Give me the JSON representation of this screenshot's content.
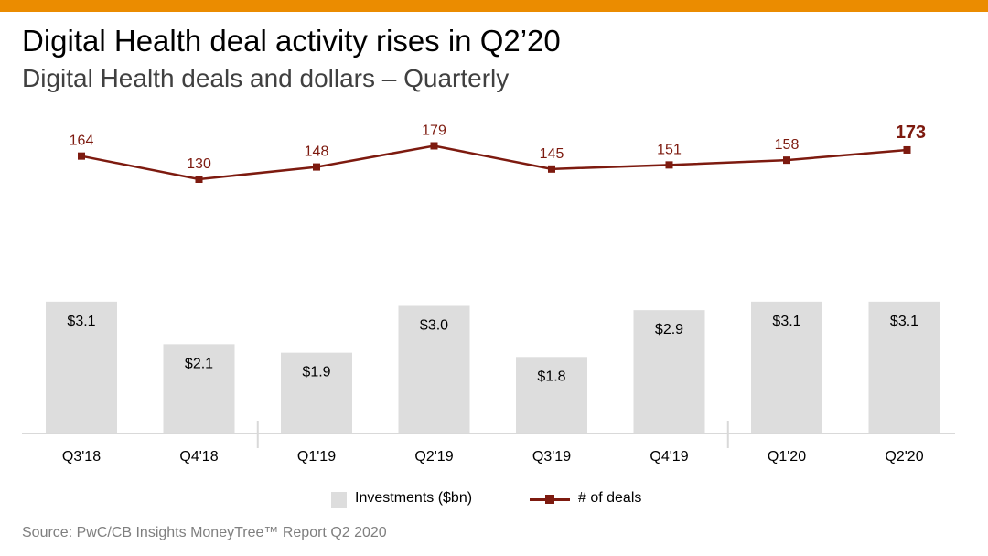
{
  "header": {
    "title": "Digital Health deal activity rises in Q2’20",
    "subtitle": "Digital Health deals and dollars – Quarterly"
  },
  "colors": {
    "accent_bar": "#EB8C00",
    "bar": "#DDDDDD",
    "line": "#7D1A0F",
    "axis": "#D9D9D9"
  },
  "chart_data": {
    "type": "bar",
    "categories": [
      "Q3'18",
      "Q4'18",
      "Q1'19",
      "Q2'19",
      "Q3'19",
      "Q4'19",
      "Q1'20",
      "Q2'20"
    ],
    "series": [
      {
        "name": "Investments ($bn)",
        "type": "bar",
        "values": [
          3.1,
          2.1,
          1.9,
          3.0,
          1.8,
          2.9,
          3.1,
          3.1
        ],
        "labels": [
          "$3.1",
          "$2.1",
          "$1.9",
          "$3.0",
          "$1.8",
          "$2.9",
          "$3.1",
          "$3.1"
        ]
      },
      {
        "name": "# of deals",
        "type": "line",
        "values": [
          164,
          130,
          148,
          179,
          145,
          151,
          158,
          173
        ],
        "labels": [
          "164",
          "130",
          "148",
          "179",
          "145",
          "151",
          "158",
          "173"
        ],
        "emphasized_index": 7
      }
    ],
    "year_separators_after": [
      1,
      5
    ],
    "grid": false,
    "legend": "bottom-center"
  },
  "legend": {
    "bar_label": "Investments ($bn)",
    "line_label": "# of deals"
  },
  "footer": {
    "source": "Source: PwC/CB Insights MoneyTree™ Report Q2 2020"
  }
}
